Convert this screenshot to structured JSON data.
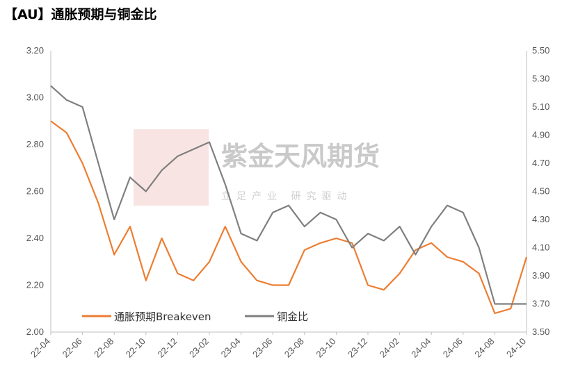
{
  "title": "【AU】通胀预期与铜金比",
  "watermark": {
    "logo_text": "紫金天风期货",
    "slogan": "立足产业 研究驱动"
  },
  "chart_data": {
    "type": "line",
    "title": "【AU】通胀预期与铜金比",
    "x_ticks": [
      "22-04",
      "22-06",
      "22-08",
      "22-10",
      "22-12",
      "23-02",
      "23-04",
      "23-06",
      "23-08",
      "23-10",
      "23-12",
      "24-02",
      "24-04",
      "24-06",
      "24-08",
      "24-10"
    ],
    "y_left": {
      "range": [
        2.0,
        3.2
      ],
      "ticks": [
        "2.00",
        "2.20",
        "2.40",
        "2.60",
        "2.80",
        "3.00",
        "3.20"
      ]
    },
    "y_right": {
      "range": [
        3.5,
        5.5
      ],
      "ticks": [
        "3.50",
        "3.70",
        "3.90",
        "4.10",
        "4.30",
        "4.50",
        "4.70",
        "4.90",
        "5.10",
        "5.30",
        "5.50"
      ]
    },
    "legend_position": "bottom-left",
    "grid": false,
    "series": [
      {
        "name": "通胀预期Breakeven",
        "axis": "left",
        "color": "#ED7D31",
        "x": [
          "22-04",
          "22-05",
          "22-06",
          "22-07",
          "22-08",
          "22-09",
          "22-10",
          "22-11",
          "22-12",
          "23-01",
          "23-02",
          "23-03",
          "23-04",
          "23-05",
          "23-06",
          "23-07",
          "23-08",
          "23-09",
          "23-10",
          "23-11",
          "23-12",
          "24-01",
          "24-02",
          "24-03",
          "24-04",
          "24-05",
          "24-06",
          "24-07",
          "24-08",
          "24-09",
          "24-10"
        ],
        "values": [
          2.9,
          2.85,
          2.72,
          2.55,
          2.33,
          2.45,
          2.22,
          2.4,
          2.25,
          2.22,
          2.3,
          2.45,
          2.3,
          2.22,
          2.2,
          2.2,
          2.35,
          2.38,
          2.4,
          2.38,
          2.2,
          2.18,
          2.25,
          2.35,
          2.38,
          2.32,
          2.3,
          2.25,
          2.08,
          2.1,
          2.32
        ]
      },
      {
        "name": "铜金比",
        "axis": "right",
        "color": "#7F7F7F",
        "x": [
          "22-04",
          "22-05",
          "22-06",
          "22-07",
          "22-08",
          "22-09",
          "22-10",
          "22-11",
          "22-12",
          "23-01",
          "23-02",
          "23-03",
          "23-04",
          "23-05",
          "23-06",
          "23-07",
          "23-08",
          "23-09",
          "23-10",
          "23-11",
          "23-12",
          "24-01",
          "24-02",
          "24-03",
          "24-04",
          "24-05",
          "24-06",
          "24-07",
          "24-08",
          "24-09",
          "24-10"
        ],
        "values": [
          5.25,
          5.15,
          5.1,
          4.7,
          4.3,
          4.6,
          4.5,
          4.65,
          4.75,
          4.8,
          4.85,
          4.55,
          4.2,
          4.15,
          4.35,
          4.4,
          4.25,
          4.35,
          4.3,
          4.1,
          4.2,
          4.15,
          4.25,
          4.05,
          4.25,
          4.4,
          4.35,
          4.1,
          3.7,
          3.7,
          3.7
        ]
      }
    ]
  }
}
